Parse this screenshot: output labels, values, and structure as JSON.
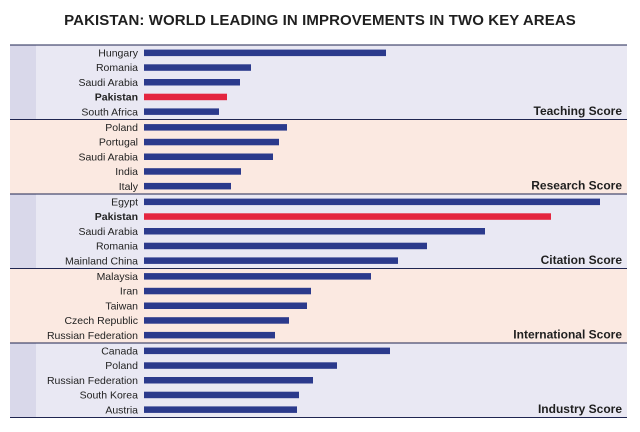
{
  "colors": {
    "bar": "#2b3a8c",
    "highlight": "#e4253f",
    "band_purple": "#e9e8f3",
    "band_peach": "#fbe9e1",
    "left_strip": "#d9d8ea",
    "divider": "#1f2550"
  },
  "chart_data": {
    "type": "bar",
    "orientation": "horizontal",
    "title": "PAKISTAN: WORLD LEADING IN  IMPROVEMENTS IN TWO KEY AREAS",
    "xlabel": "",
    "ylabel": "",
    "axis_ticks": false,
    "grid": false,
    "highlight_category": "Pakistan",
    "groups": [
      {
        "name": "Teaching Score",
        "band": "purple",
        "categories": [
          "Hungary",
          "Romania",
          "Saudi Arabia",
          "Pakistan",
          "South Africa"
        ],
        "values": [
          242,
          107,
          96,
          83,
          75
        ]
      },
      {
        "name": "Research Score",
        "band": "peach",
        "categories": [
          "Poland",
          "Portugal",
          "Saudi Arabia",
          "India",
          "Italy"
        ],
        "values": [
          143,
          135,
          129,
          97,
          87
        ]
      },
      {
        "name": "Citation Score",
        "band": "purple",
        "categories": [
          "Egypt",
          "Pakistan",
          "Saudi Arabia",
          "Romania",
          "Mainland China"
        ],
        "values": [
          456,
          407,
          341,
          283,
          254
        ]
      },
      {
        "name": "International Score",
        "band": "peach",
        "categories": [
          "Malaysia",
          "Iran",
          "Taiwan",
          "Czech Republic",
          "Russian Federation"
        ],
        "values": [
          227,
          167,
          163,
          145,
          131
        ]
      },
      {
        "name": "Industry Score",
        "band": "purple",
        "categories": [
          "Canada",
          "Poland",
          "Russian Federation",
          "South Korea",
          "Austria"
        ],
        "values": [
          246,
          193,
          169,
          155,
          153
        ]
      }
    ]
  }
}
